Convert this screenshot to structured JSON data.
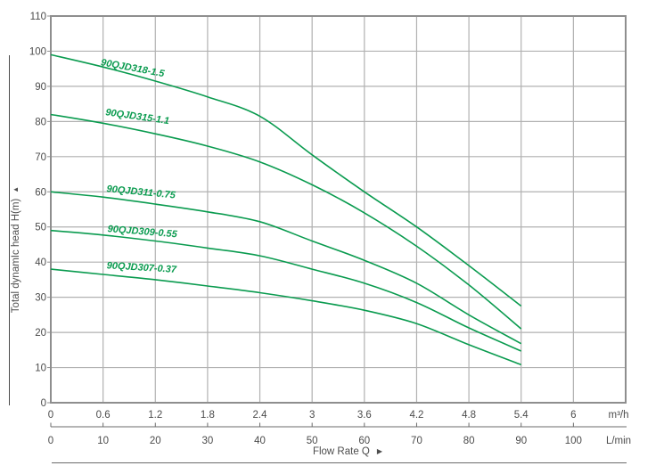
{
  "chart_data": {
    "type": "line",
    "title": "",
    "x_label": "Flow Rate Q",
    "x_label_arrow": "▶",
    "y_label": "Total dynamIc head H(m)",
    "y_label_arrow": "▲",
    "x_units_primary": "m³/h",
    "x_units_secondary": "L/min",
    "grid": true,
    "legend_position": "inline-curve-labels",
    "x": [
      0,
      0.6,
      1.2,
      1.8,
      2.4,
      3.0,
      3.6,
      4.2,
      4.8,
      5.4
    ],
    "x_axis_primary": {
      "min": 0,
      "max": 6.6,
      "tick_step": 0.6,
      "tick_labels": [
        "0",
        "0.6",
        "1.2",
        "1.8",
        "2.4",
        "3",
        "3.6",
        "4.2",
        "4.8",
        "5.4",
        "6"
      ]
    },
    "x_axis_secondary": {
      "min": 0,
      "max": 110,
      "tick_step": 10,
      "tick_labels": [
        "0",
        "10",
        "20",
        "30",
        "40",
        "50",
        "60",
        "70",
        "80",
        "90",
        "100"
      ]
    },
    "y_axis": {
      "min": 0,
      "max": 110,
      "tick_step": 10,
      "tick_labels": [
        "0",
        "10",
        "20",
        "30",
        "40",
        "50",
        "60",
        "70",
        "80",
        "90",
        "100",
        "110"
      ]
    },
    "series": [
      {
        "name": "90QJD318-1.5",
        "values": [
          99,
          95.5,
          91.5,
          87,
          81.5,
          70.5,
          60,
          50,
          39,
          27.5
        ]
      },
      {
        "name": "90QJD315-1.1",
        "values": [
          82,
          79.5,
          76.5,
          73,
          68.5,
          62,
          54,
          44.5,
          33.5,
          21
        ]
      },
      {
        "name": "90QJD311-0.75",
        "values": [
          60,
          58.5,
          56.5,
          54.3,
          51.5,
          46,
          40.5,
          34,
          25,
          16.8
        ]
      },
      {
        "name": "90QJD309-0.55",
        "values": [
          49,
          47.7,
          46,
          44,
          41.8,
          38,
          34,
          28.5,
          21.3,
          14.7
        ]
      },
      {
        "name": "90QJD307-0.37",
        "values": [
          38,
          36.5,
          35,
          33.2,
          31.3,
          29,
          26.3,
          22.5,
          16.5,
          10.8
        ]
      }
    ],
    "colors": {
      "curve": "#0a9b4f",
      "grid": "#b1b1b1",
      "plot_border": "#8e8e8e",
      "axis_text": "#4b4b4b",
      "secondary_axis_line": "#6b6b6b"
    }
  }
}
